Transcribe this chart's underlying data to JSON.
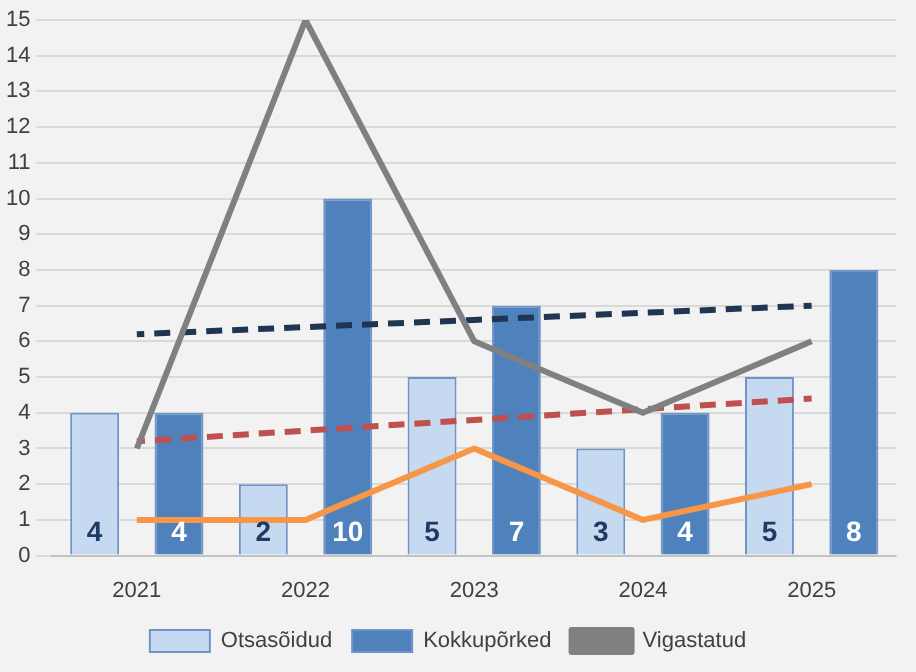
{
  "chart_data": {
    "type": "bar",
    "categories": [
      "2021",
      "2022",
      "2023",
      "2024",
      "2025"
    ],
    "ylim": [
      0,
      15
    ],
    "yticks": [
      0,
      1,
      2,
      3,
      4,
      5,
      6,
      7,
      8,
      9,
      10,
      11,
      12,
      13,
      14,
      15
    ],
    "grid": "y",
    "legend": "bottom",
    "series": [
      {
        "name": "Otsasõidud",
        "color": "#c5d9f1",
        "values": [
          4,
          2,
          5,
          3,
          5
        ],
        "value_labels": [
          "4",
          "2",
          "5",
          "3",
          "5"
        ]
      },
      {
        "name": "Kokkupõrked",
        "color": "#4f81bd",
        "values": [
          4,
          10,
          7,
          4,
          8
        ],
        "value_labels": [
          "4",
          "10",
          "7",
          "4",
          "8"
        ]
      },
      {
        "name": "Vigastatud",
        "type": "line",
        "color": "#808080",
        "values": [
          3,
          15,
          6,
          4,
          6
        ],
        "marker": "none",
        "line_style": "solid"
      },
      {
        "type": "line",
        "color": "#f79646",
        "values": [
          1,
          1,
          3,
          1,
          2
        ],
        "marker": "none",
        "line_style": "solid"
      },
      {
        "type": "line",
        "color": "#1f3552",
        "values": [
          6.2,
          6.4,
          6.6,
          6.8,
          7.0
        ],
        "marker": "none",
        "line_style": "dashed"
      },
      {
        "type": "line",
        "color": "#c0504d",
        "values": [
          3.2,
          3.5,
          3.8,
          4.1,
          4.4
        ],
        "marker": "none",
        "line_style": "dashed"
      }
    ]
  }
}
